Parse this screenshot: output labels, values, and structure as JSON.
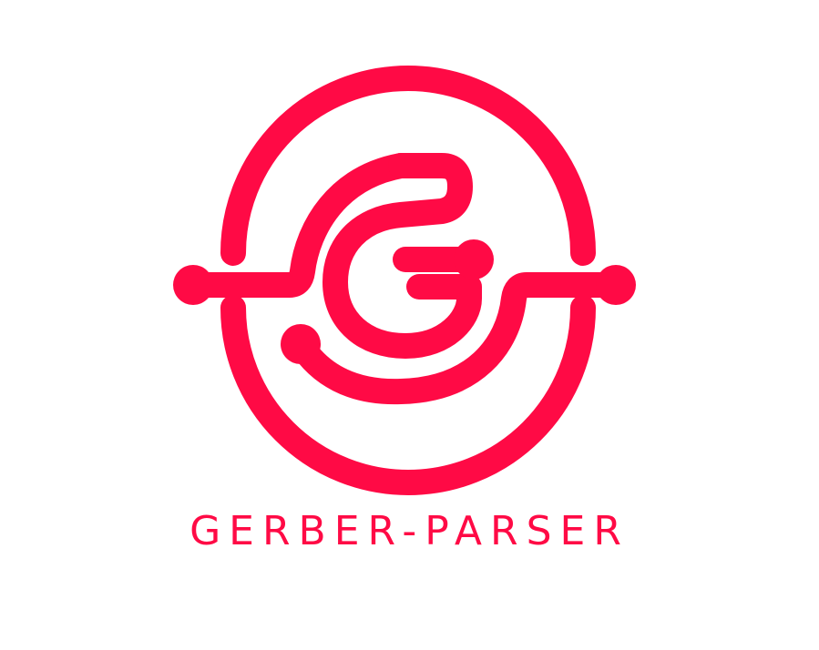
{
  "brand": {
    "name": "GERBER-PARSER",
    "color": "#ff0a45",
    "background": "#ffffff"
  },
  "logo": {
    "icon": "circuit-g-icon"
  }
}
